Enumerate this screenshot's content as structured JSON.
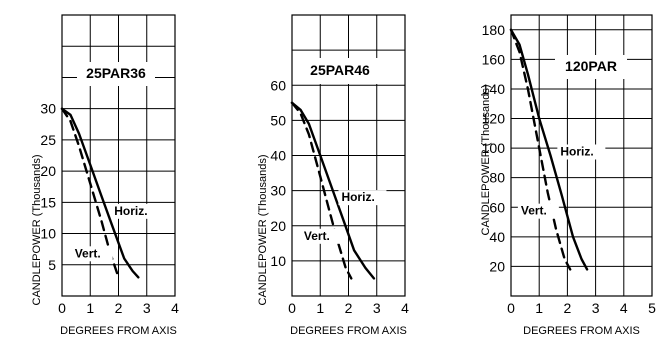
{
  "chart_data": [
    {
      "type": "line",
      "title": "25PAR36",
      "xlabel": "DEGREES FROM AXIS",
      "ylabel": "CANDLEPOWER (Thousands)",
      "xlim": [
        0,
        4
      ],
      "ylim": [
        0,
        45
      ],
      "x_ticks": [
        "0",
        "1",
        "2",
        "3",
        "4"
      ],
      "y_ticks": [
        "5",
        "10",
        "15",
        "20",
        "25",
        "30"
      ],
      "grid": true,
      "series": [
        {
          "name": "Horiz.",
          "style": "solid",
          "x": [
            0,
            0.3,
            0.6,
            1.0,
            1.4,
            1.8,
            2.2,
            2.5,
            2.7
          ],
          "y": [
            30,
            29,
            26,
            21,
            16,
            11,
            6,
            4,
            3
          ]
        },
        {
          "name": "Vert.",
          "style": "dashed",
          "x": [
            0,
            0.3,
            0.6,
            1.0,
            1.4,
            1.7,
            2.0
          ],
          "y": [
            30,
            28,
            24,
            18,
            12,
            7,
            3
          ]
        }
      ]
    },
    {
      "type": "line",
      "title": "25PAR46",
      "xlabel": "DEGREES FROM AXIS",
      "ylabel": "CANDLEPOWER (Thousands)",
      "xlim": [
        0,
        4
      ],
      "ylim": [
        0,
        80
      ],
      "x_ticks": [
        "0",
        "1",
        "2",
        "3",
        "4"
      ],
      "y_ticks": [
        "10",
        "20",
        "30",
        "40",
        "50",
        "60"
      ],
      "grid": true,
      "series": [
        {
          "name": "Horiz.",
          "style": "solid",
          "x": [
            0,
            0.3,
            0.6,
            1.0,
            1.4,
            1.8,
            2.2,
            2.6,
            2.9
          ],
          "y": [
            55,
            53,
            49,
            40,
            31,
            22,
            13,
            8,
            5
          ]
        },
        {
          "name": "Vert.",
          "style": "dashed",
          "x": [
            0,
            0.3,
            0.6,
            1.0,
            1.3,
            1.6,
            1.9,
            2.1
          ],
          "y": [
            55,
            52,
            46,
            34,
            25,
            16,
            8,
            5
          ]
        }
      ]
    },
    {
      "type": "line",
      "title": "120PAR",
      "xlabel": "DEGREES FROM AXIS",
      "ylabel": "CANDLEPOWER (Thousands)",
      "xlim": [
        0,
        5
      ],
      "ylim": [
        0,
        190
      ],
      "x_ticks": [
        "0",
        "1",
        "2",
        "3",
        "4",
        "5"
      ],
      "y_ticks": [
        "20",
        "40",
        "60",
        "80",
        "100",
        "120",
        "140",
        "160",
        "180"
      ],
      "grid": true,
      "series": [
        {
          "name": "Horiz.",
          "style": "solid",
          "x": [
            0,
            0.3,
            0.6,
            1.0,
            1.4,
            1.8,
            2.2,
            2.5,
            2.7
          ],
          "y": [
            180,
            170,
            150,
            120,
            95,
            68,
            40,
            25,
            18
          ]
        },
        {
          "name": "Vert.",
          "style": "dashed",
          "x": [
            0,
            0.3,
            0.6,
            1.0,
            1.3,
            1.6,
            1.9,
            2.1
          ],
          "y": [
            180,
            165,
            140,
            100,
            70,
            45,
            25,
            18
          ]
        }
      ]
    }
  ]
}
